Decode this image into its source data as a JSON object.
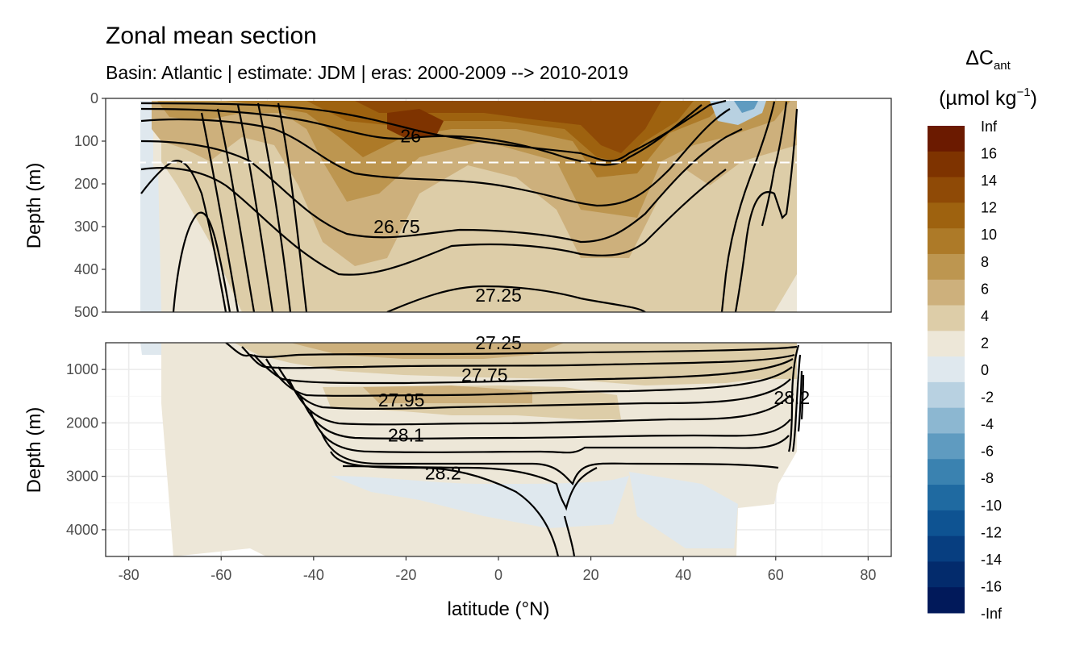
{
  "chart_data": {
    "type": "heatmap",
    "title": "Zonal mean section",
    "subtitle": "Basin: Atlantic | estimate: JDM  | eras: 2000-2009 --> 2010-2019",
    "xlabel": "latitude (°N)",
    "xlim": [
      -85,
      85
    ],
    "x_ticks": [
      -80,
      -60,
      -40,
      -20,
      0,
      20,
      40,
      60,
      80
    ],
    "panels": [
      {
        "name": "upper",
        "ylabel": "Depth (m)",
        "ylim": [
          0,
          500
        ],
        "y_ticks": [
          0,
          100,
          200,
          300,
          400,
          500
        ],
        "reference_line_depth": 150,
        "contour_labels": [
          {
            "text": "26",
            "lat": -19,
            "depth": 88
          },
          {
            "text": "26.75",
            "lat": -22,
            "depth": 300
          },
          {
            "text": "27.25",
            "lat": 0,
            "depth": 460
          }
        ]
      },
      {
        "name": "lower",
        "ylabel": "Depth (m)",
        "ylim": [
          500,
          4500
        ],
        "y_ticks": [
          1000,
          2000,
          3000,
          4000
        ],
        "contour_labels": [
          {
            "text": "27.25",
            "lat": 0,
            "depth": 500
          },
          {
            "text": "27.75",
            "lat": -3,
            "depth": 1100
          },
          {
            "text": "27.95",
            "lat": -21,
            "depth": 1570
          },
          {
            "text": "28.1",
            "lat": -20,
            "depth": 2230
          },
          {
            "text": "28.2",
            "lat": -12,
            "depth": 2940
          },
          {
            "text": "28.2",
            "lat": 63.5,
            "depth": 1530
          }
        ]
      }
    ],
    "legend": {
      "title_main": "ΔC",
      "title_sub": "ant",
      "unit_open": "(µmol kg",
      "unit_sup": "−1",
      "unit_close": ")",
      "position": "right",
      "labels": [
        "Inf",
        "16",
        "14",
        "12",
        "10",
        "8",
        "6",
        "4",
        "2",
        "0",
        "-2",
        "-4",
        "-6",
        "-8",
        "-10",
        "-12",
        "-14",
        "-16",
        "-Inf"
      ],
      "colors": [
        "#6b1a00",
        "#7e3300",
        "#8f4a06",
        "#9e620f",
        "#ad7a28",
        "#bd9650",
        "#cdb07c",
        "#ddcda8",
        "#ede7d8",
        "#dfe8ee",
        "#b8d1e1",
        "#8cb7d1",
        "#5f9bc0",
        "#3a82b0",
        "#1f6aa1",
        "#0e5392",
        "#073e80",
        "#032b6c",
        "#01195a"
      ]
    }
  }
}
